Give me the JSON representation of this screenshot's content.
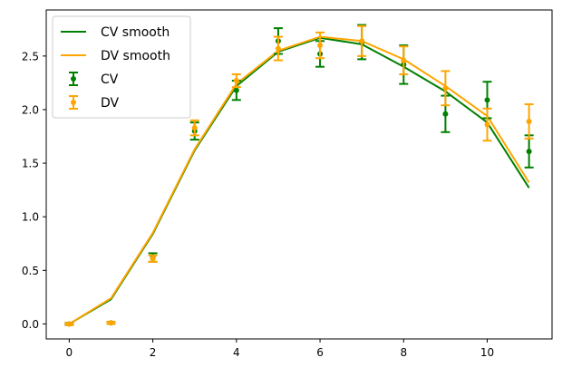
{
  "chart_data": {
    "type": "line",
    "title": "",
    "xlabel": "",
    "ylabel": "",
    "xlim": [
      -0.55,
      11.55
    ],
    "ylim": [
      -0.14,
      2.93
    ],
    "xticks": [
      0,
      2,
      4,
      6,
      8,
      10
    ],
    "yticks": [
      0.0,
      0.5,
      1.0,
      1.5,
      2.0,
      2.5
    ],
    "xtick_labels": [
      "0",
      "2",
      "4",
      "6",
      "8",
      "10"
    ],
    "ytick_labels": [
      "0.0",
      "0.5",
      "1.0",
      "1.5",
      "2.0",
      "2.5"
    ],
    "grid": false,
    "legend_position": "upper-left",
    "x": [
      0,
      1,
      2,
      3,
      4,
      5,
      6,
      7,
      8,
      9,
      10,
      11
    ],
    "series": [
      {
        "name": "CV smooth",
        "kind": "line",
        "color": "#008000",
        "values": [
          0.0,
          0.23,
          0.84,
          1.62,
          2.22,
          2.54,
          2.67,
          2.61,
          2.4,
          2.17,
          1.88,
          1.27
        ]
      },
      {
        "name": "DV smooth",
        "kind": "line",
        "color": "#ffa500",
        "values": [
          0.0,
          0.24,
          0.85,
          1.63,
          2.24,
          2.55,
          2.68,
          2.64,
          2.47,
          2.22,
          1.94,
          1.32
        ]
      },
      {
        "name": "CV",
        "kind": "errorbar",
        "color": "#008000",
        "values": [
          0.0,
          0.01,
          0.62,
          1.8,
          2.18,
          2.64,
          2.52,
          2.63,
          2.42,
          1.96,
          2.09,
          1.61
        ],
        "errors": [
          0.01,
          0.01,
          0.04,
          0.08,
          0.09,
          0.12,
          0.12,
          0.16,
          0.18,
          0.17,
          0.17,
          0.15
        ]
      },
      {
        "name": "DV",
        "kind": "errorbar",
        "color": "#ffa500",
        "values": [
          0.0,
          0.01,
          0.61,
          1.83,
          2.27,
          2.57,
          2.6,
          2.64,
          2.46,
          2.2,
          1.86,
          1.89
        ],
        "errors": [
          0.01,
          0.01,
          0.03,
          0.07,
          0.06,
          0.11,
          0.12,
          0.14,
          0.13,
          0.16,
          0.15,
          0.16
        ]
      }
    ]
  }
}
